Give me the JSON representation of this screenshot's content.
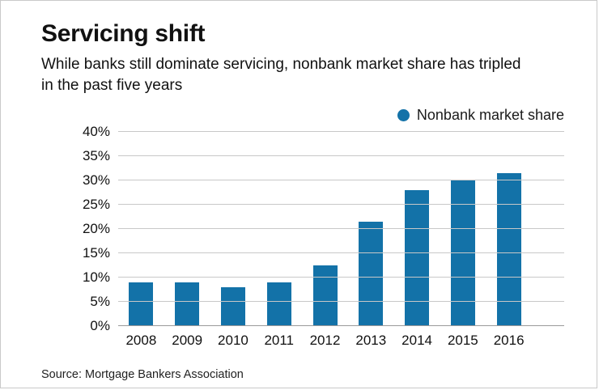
{
  "header": {
    "title": "Servicing shift",
    "subtitle": "While banks still dominate servicing, nonbank market share has tripled in the past five years"
  },
  "chart_data": {
    "type": "bar",
    "title": "Servicing shift",
    "subtitle": "While banks still dominate servicing, nonbank market share has tripled in the past five years",
    "legend_label": "Nonbank market share",
    "legend_position": "top-right",
    "categories": [
      "2008",
      "2009",
      "2010",
      "2011",
      "2012",
      "2013",
      "2014",
      "2015",
      "2016"
    ],
    "values": [
      9,
      9,
      8,
      9,
      12.5,
      21.5,
      28,
      30,
      31.5
    ],
    "xlabel": "",
    "ylabel": "",
    "ylim": [
      0,
      40
    ],
    "yticks": [
      0,
      5,
      10,
      15,
      20,
      25,
      30,
      35,
      40
    ],
    "ytick_suffix": "%",
    "grid": true,
    "bar_color": "#1372A8"
  },
  "footer": {
    "source": "Source: Mortgage Bankers Association"
  }
}
